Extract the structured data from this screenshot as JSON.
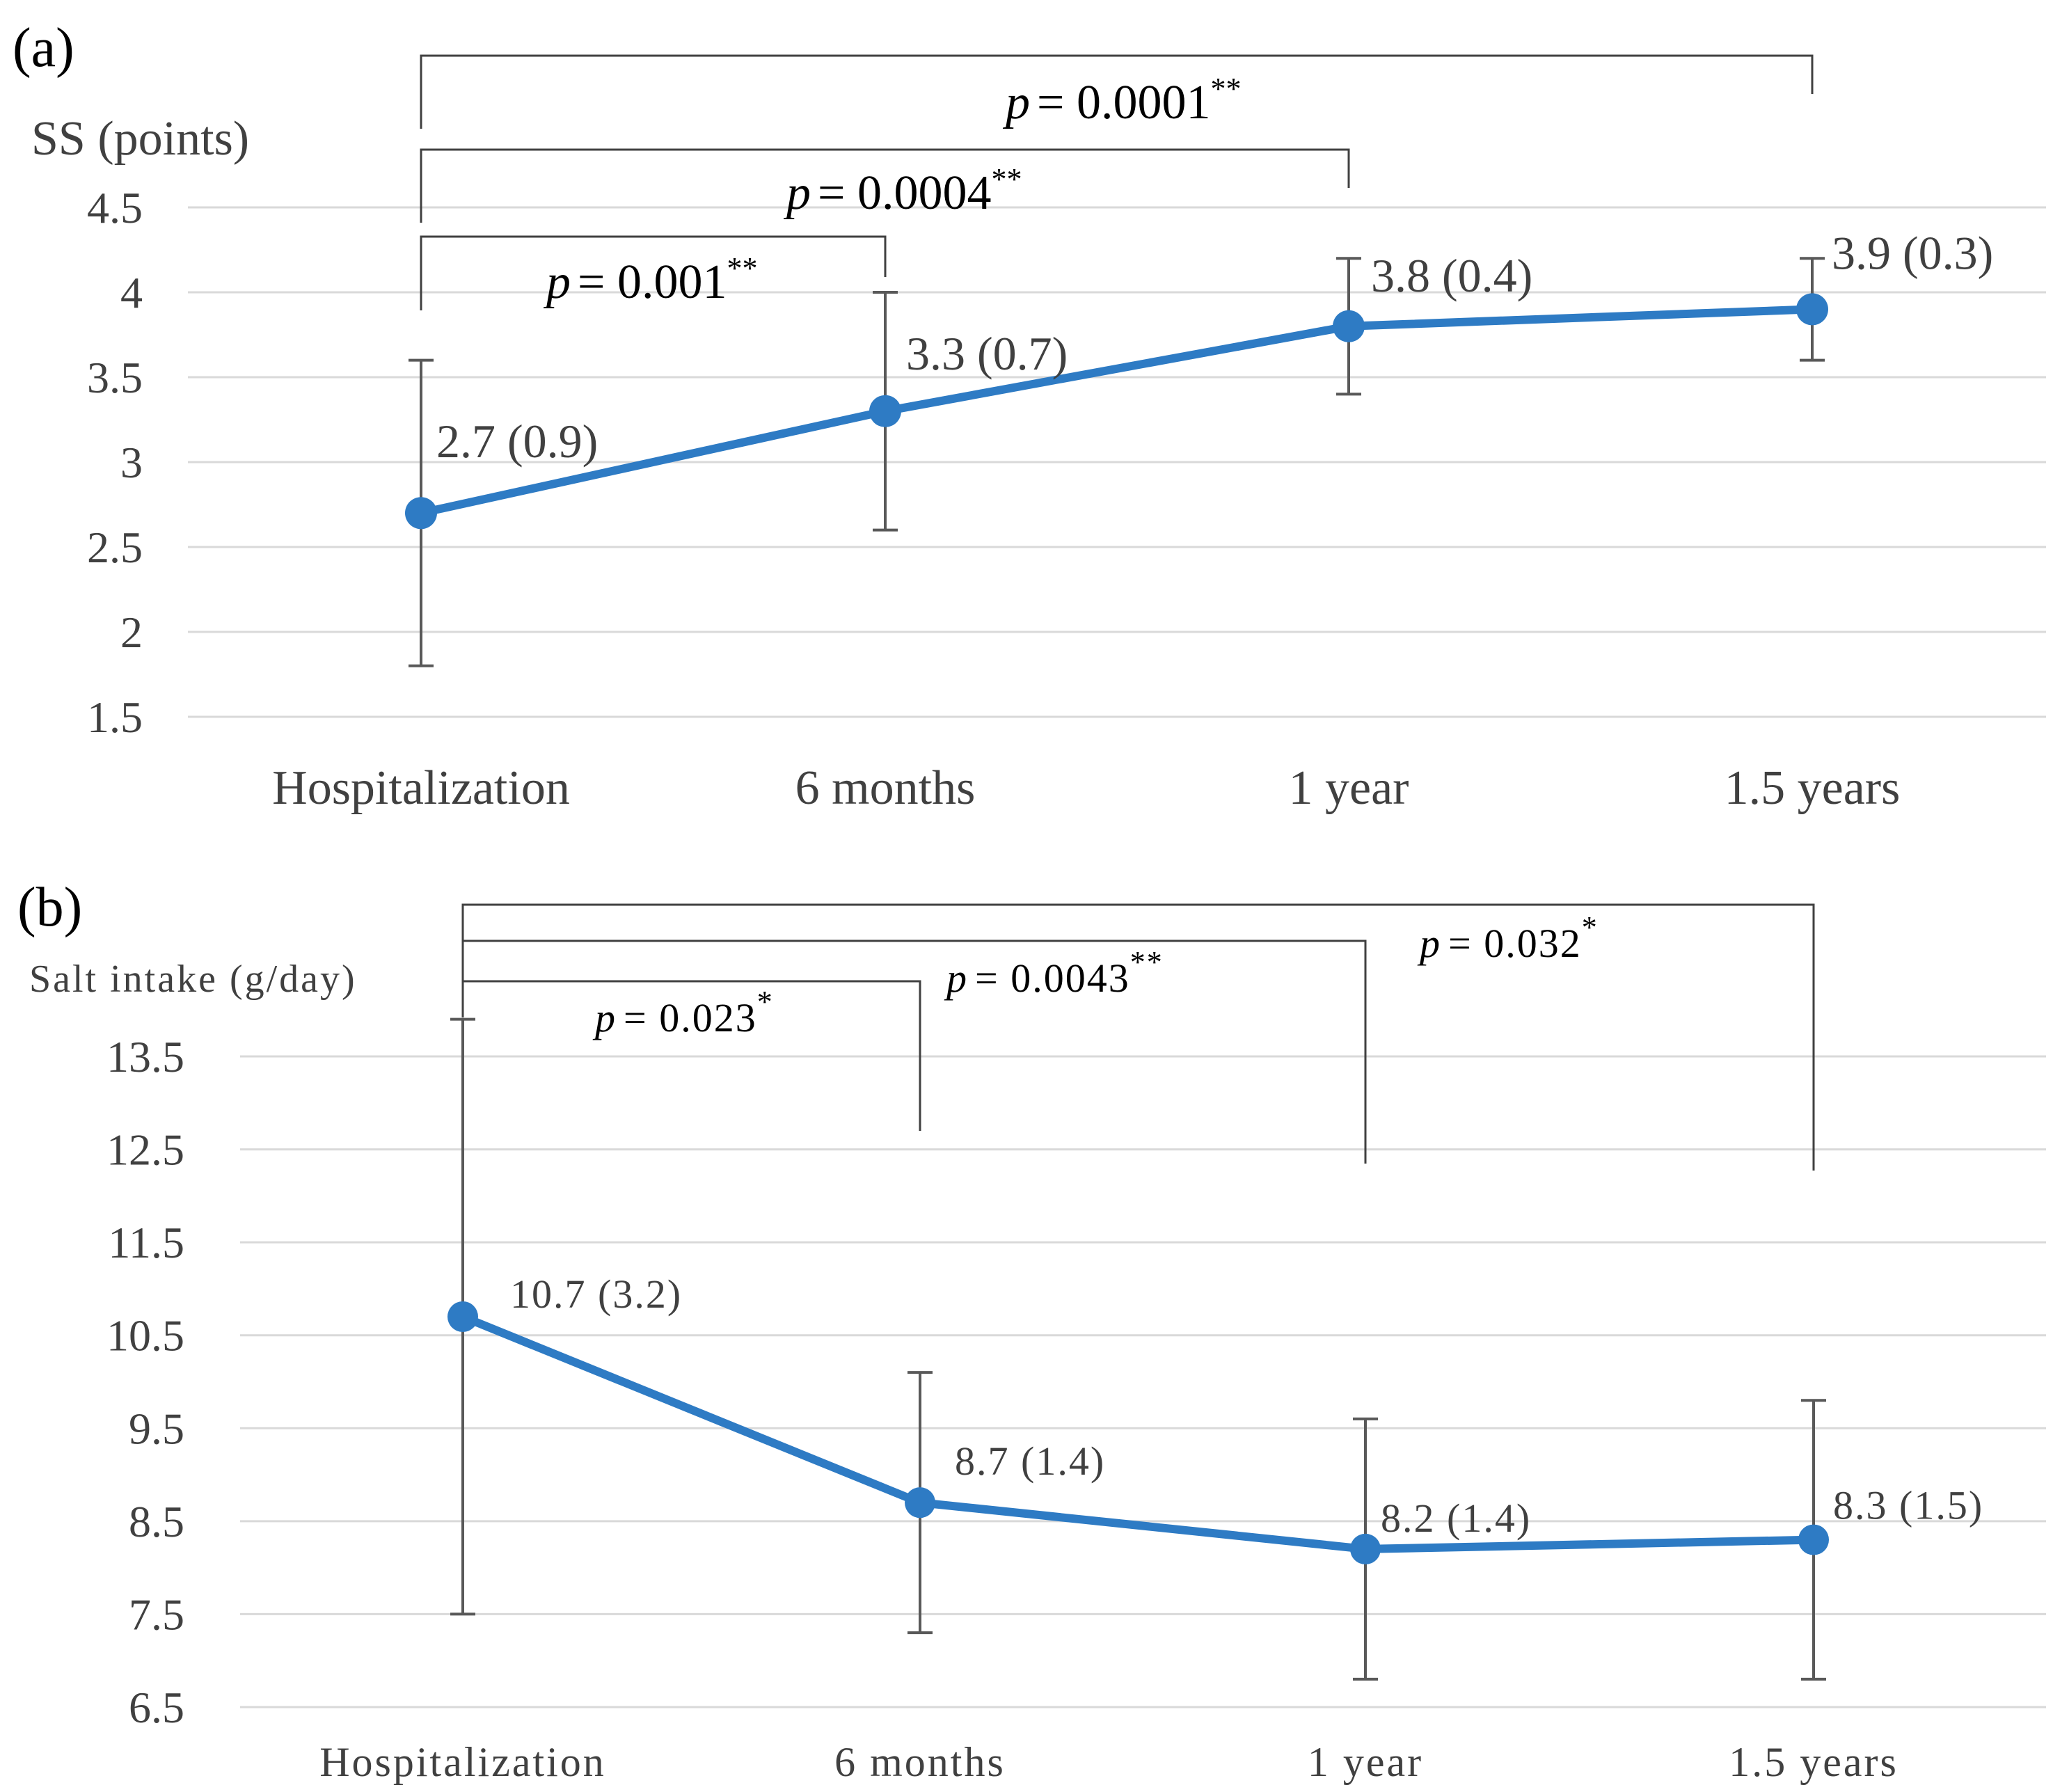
{
  "chart_data": [
    {
      "type": "line",
      "panel_label": "(a)",
      "title": "",
      "xlabel": "",
      "ylabel": "SS (points)",
      "categories": [
        "Hospitalization",
        "6 months",
        "1 year",
        "1.5 years"
      ],
      "yticks": [
        "1.5",
        "2",
        "2.5",
        "3",
        "3.5",
        "4",
        "4.5"
      ],
      "ylim": [
        1.5,
        4.5
      ],
      "grid": true,
      "series": [
        {
          "values": [
            2.7,
            3.3,
            3.8,
            3.9
          ],
          "sd": [
            0.9,
            0.7,
            0.4,
            0.3
          ],
          "data_labels": [
            "2.7 (0.9)",
            "3.3 (0.7)",
            "3.8 (0.4)",
            "3.9 (0.3)"
          ],
          "color": "#2e7bc4"
        }
      ],
      "comparisons": [
        {
          "from": "Hospitalization",
          "to": "6 months",
          "p_label": "p",
          "p_value": "= 0.001",
          "stars": "**"
        },
        {
          "from": "Hospitalization",
          "to": "1 year",
          "p_label": "p",
          "p_value": "= 0.0004",
          "stars": "**"
        },
        {
          "from": "Hospitalization",
          "to": "1.5 years",
          "p_label": "p",
          "p_value": "= 0.0001",
          "stars": "**"
        }
      ]
    },
    {
      "type": "line",
      "panel_label": "(b)",
      "title": "",
      "xlabel": "",
      "ylabel": "Salt intake (g/day)",
      "categories": [
        "Hospitalization",
        "6 months",
        "1 year",
        "1.5 years"
      ],
      "yticks": [
        "6.5",
        "7.5",
        "8.5",
        "9.5",
        "10.5",
        "11.5",
        "12.5",
        "13.5"
      ],
      "ylim": [
        6.5,
        13.5
      ],
      "grid": true,
      "series": [
        {
          "values": [
            10.7,
            8.7,
            8.2,
            8.3
          ],
          "sd": [
            3.2,
            1.4,
            1.4,
            1.5
          ],
          "data_labels": [
            "10.7 (3.2)",
            "8.7 (1.4)",
            "8.2 (1.4)",
            "8.3 (1.5)"
          ],
          "color": "#2e7bc4"
        }
      ],
      "comparisons": [
        {
          "from": "Hospitalization",
          "to": "6 months",
          "p_label": "p",
          "p_value": "= 0.023",
          "stars": "*"
        },
        {
          "from": "Hospitalization",
          "to": "1 year",
          "p_label": "p",
          "p_value": "= 0.0043",
          "stars": "**"
        },
        {
          "from": "Hospitalization",
          "to": "1.5 years",
          "p_label": "p",
          "p_value": "= 0.032",
          "stars": "*"
        }
      ]
    }
  ]
}
